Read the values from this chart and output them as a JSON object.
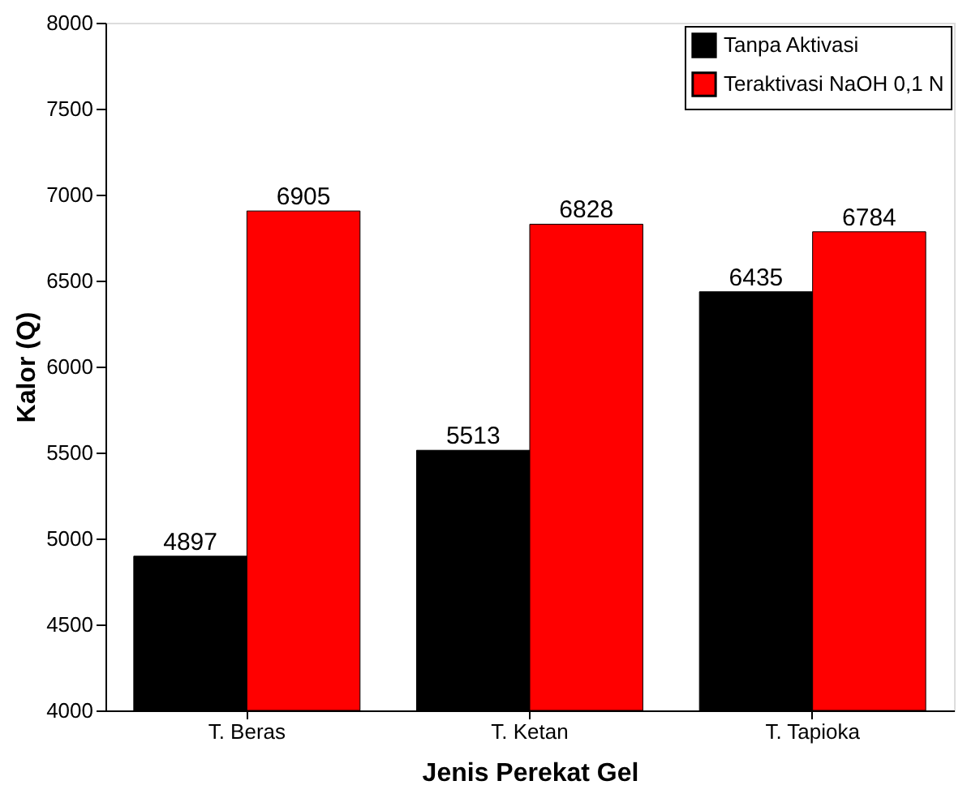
{
  "chart_data": {
    "type": "bar",
    "xlabel": "Jenis Perekat Gel",
    "ylabel": "Kalor (Q)",
    "categories": [
      "T. Beras",
      "T. Ketan",
      "T. Tapioka"
    ],
    "series": [
      {
        "name": "Tanpa Aktivasi",
        "color": "#000000",
        "values": [
          4897,
          5513,
          6435
        ]
      },
      {
        "name": "Teraktivasi NaOH 0,1 N",
        "color": "#ff0000",
        "values": [
          6905,
          6828,
          6784
        ]
      }
    ],
    "ylim": [
      4000,
      8000
    ],
    "yticks": [
      4000,
      4500,
      5000,
      5500,
      6000,
      6500,
      7000,
      7500,
      8000
    ],
    "data_labels": true,
    "legend": "top right",
    "grid": false
  }
}
